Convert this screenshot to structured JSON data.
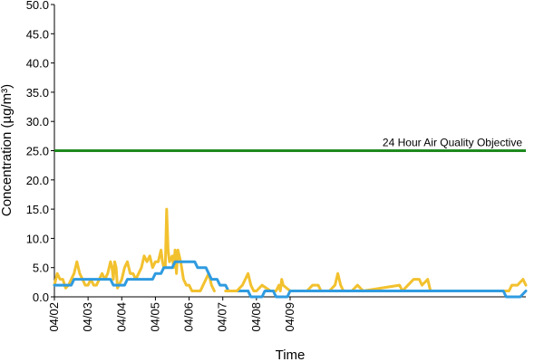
{
  "chart_data": {
    "type": "line",
    "title": "",
    "xlabel": "Time",
    "ylabel": "Concentration (µg/m³)",
    "ylim": [
      0,
      50
    ],
    "yticks": [
      "0.0",
      "5.0",
      "10.0",
      "15.0",
      "20.0",
      "25.0",
      "30.0",
      "35.0",
      "40.0",
      "45.0",
      "50.0"
    ],
    "xlim": [
      "04/02 00:00",
      "04/09 00:00"
    ],
    "xticks": [
      "04/02",
      "04/03",
      "04/04",
      "04/05",
      "04/06",
      "04/07",
      "04/08",
      "04/09"
    ],
    "grid": false,
    "legend": "none",
    "annotations": [
      {
        "text": "24 Hour Air Quality Objective",
        "y": 25
      }
    ],
    "series": [
      {
        "color": "#f2c12e",
        "points": [
          [
            "04/02 00:00",
            2
          ],
          [
            "04/02 02:00",
            4
          ],
          [
            "04/02 04:00",
            3
          ],
          [
            "04/02 06:00",
            3
          ],
          [
            "04/02 08:00",
            1.5
          ],
          [
            "04/02 10:00",
            2
          ],
          [
            "04/02 12:00",
            3
          ],
          [
            "04/02 14:00",
            4
          ],
          [
            "04/02 16:00",
            6
          ],
          [
            "04/02 18:00",
            4
          ],
          [
            "04/02 20:00",
            3
          ],
          [
            "04/02 22:00",
            2
          ],
          [
            "04/03 00:00",
            2
          ],
          [
            "04/03 02:00",
            3
          ],
          [
            "04/03 04:00",
            2
          ],
          [
            "04/03 06:00",
            2
          ],
          [
            "04/03 08:00",
            3
          ],
          [
            "04/03 10:00",
            4
          ],
          [
            "04/03 12:00",
            3
          ],
          [
            "04/03 14:00",
            4
          ],
          [
            "04/03 16:00",
            6
          ],
          [
            "04/03 17:00",
            5
          ],
          [
            "04/03 18:00",
            3
          ],
          [
            "04/03 19:00",
            6
          ],
          [
            "04/03 20:00",
            5
          ],
          [
            "04/03 21:00",
            1.5
          ],
          [
            "04/03 22:00",
            2
          ],
          [
            "04/04 00:00",
            3
          ],
          [
            "04/04 02:00",
            5
          ],
          [
            "04/04 04:00",
            6
          ],
          [
            "04/04 06:00",
            4
          ],
          [
            "04/04 08:00",
            4
          ],
          [
            "04/04 10:00",
            3
          ],
          [
            "04/04 12:00",
            4
          ],
          [
            "04/04 14:00",
            5
          ],
          [
            "04/04 16:00",
            7
          ],
          [
            "04/04 18:00",
            6
          ],
          [
            "04/04 20:00",
            7
          ],
          [
            "04/04 22:00",
            5
          ],
          [
            "04/05 00:00",
            6
          ],
          [
            "04/05 02:00",
            6
          ],
          [
            "04/05 04:00",
            8
          ],
          [
            "04/05 05:00",
            6
          ],
          [
            "04/05 06:00",
            5
          ],
          [
            "04/05 07:00",
            5
          ],
          [
            "04/05 08:00",
            15
          ],
          [
            "04/05 09:00",
            8
          ],
          [
            "04/05 10:00",
            6
          ],
          [
            "04/05 12:00",
            7
          ],
          [
            "04/05 13:00",
            5
          ],
          [
            "04/05 14:00",
            8
          ],
          [
            "04/05 15:00",
            4
          ],
          [
            "04/05 16:00",
            8
          ],
          [
            "04/05 18:00",
            6
          ],
          [
            "04/05 20:00",
            3
          ],
          [
            "04/05 22:00",
            2
          ],
          [
            "04/06 00:00",
            2
          ],
          [
            "04/06 02:00",
            1
          ],
          [
            "04/06 04:00",
            1
          ],
          [
            "04/06 06:00",
            1
          ],
          [
            "04/06 08:00",
            1
          ],
          [
            "04/06 10:00",
            2
          ],
          [
            "04/06 12:00",
            3
          ],
          [
            "04/06 14:00",
            4
          ],
          [
            "04/06 16:00",
            2
          ],
          [
            "04/06 18:00",
            1
          ]
        ]
      },
      {
        "color": "#2f9be0",
        "points": [
          [
            "04/02 00:00",
            2
          ],
          [
            "04/02 12:00",
            2
          ],
          [
            "04/02 14:00",
            3
          ],
          [
            "04/03 16:00",
            3
          ],
          [
            "04/03 18:00",
            2
          ],
          [
            "04/04 02:00",
            2
          ],
          [
            "04/04 04:00",
            3
          ],
          [
            "04/04 22:00",
            3
          ],
          [
            "04/05 00:00",
            4
          ],
          [
            "04/05 04:00",
            4
          ],
          [
            "04/05 06:00",
            5
          ],
          [
            "04/05 12:00",
            5
          ],
          [
            "04/05 14:00",
            6
          ],
          [
            "04/06 04:00",
            6
          ],
          [
            "04/06 06:00",
            5
          ],
          [
            "04/06 12:00",
            5
          ],
          [
            "04/06 14:00",
            4
          ],
          [
            "04/06 16:00",
            3
          ],
          [
            "04/06 20:00",
            3
          ],
          [
            "04/06 22:00",
            2
          ],
          [
            "04/07 02:00",
            2
          ],
          [
            "04/07 04:00",
            1
          ],
          [
            "04/07 18:00",
            1
          ]
        ]
      },
      {
        "color": "#f2c12e",
        "points": [
          [
            "04/07 02:00",
            1
          ],
          [
            "04/07 10:00",
            1
          ],
          [
            "04/07 14:00",
            2
          ],
          [
            "04/07 16:00",
            3
          ],
          [
            "04/07 18:00",
            4
          ],
          [
            "04/07 20:00",
            2
          ],
          [
            "04/07 22:00",
            1
          ],
          [
            "04/08 00:00",
            1
          ],
          [
            "04/08 04:00",
            2
          ],
          [
            "04/08 10:00",
            1
          ],
          [
            "04/08 14:00",
            1
          ],
          [
            "04/08 16:00",
            2
          ],
          [
            "04/08 17:00",
            1
          ],
          [
            "04/08 18:00",
            3
          ],
          [
            "04/08 19:00",
            2
          ],
          [
            "04/09 00:00",
            1
          ],
          [
            "04/09 06:00",
            1
          ],
          [
            "04/09 12:00",
            1
          ],
          [
            "04/09 16:00",
            2
          ],
          [
            "04/09 20:00",
            2
          ],
          [
            "04/09 22:00",
            1
          ],
          [
            "04/10 04:00",
            1
          ],
          [
            "04/10 08:00",
            2
          ],
          [
            "04/10 10:00",
            4
          ],
          [
            "04/10 12:00",
            2
          ],
          [
            "04/10 14:00",
            1
          ],
          [
            "04/10 20:00",
            1
          ],
          [
            "04/11 00:00",
            2
          ],
          [
            "04/11 04:00",
            1
          ],
          [
            "04/12 06:00",
            2
          ],
          [
            "04/12 08:00",
            1
          ],
          [
            "04/12 12:00",
            2
          ],
          [
            "04/12 16:00",
            3
          ],
          [
            "04/12 20:00",
            3
          ],
          [
            "04/12 22:00",
            2
          ],
          [
            "04/13 02:00",
            3
          ],
          [
            "04/13 04:00",
            1
          ],
          [
            "04/15 12:00",
            1
          ],
          [
            "04/15 14:00",
            2
          ],
          [
            "04/15 18:00",
            2
          ],
          [
            "04/15 22:00",
            3
          ],
          [
            "04/16 00:00",
            2
          ]
        ]
      },
      {
        "color": "#2f9be0",
        "points": [
          [
            "04/07 18:00",
            1
          ],
          [
            "04/07 20:00",
            0
          ],
          [
            "04/08 04:00",
            0
          ],
          [
            "04/08 06:00",
            1
          ],
          [
            "04/08 12:00",
            1
          ],
          [
            "04/08 14:00",
            0
          ],
          [
            "04/08 22:00",
            0
          ],
          [
            "04/09 00:00",
            1
          ],
          [
            "04/09 06:00",
            1
          ],
          [
            "04/09 12:00",
            1
          ],
          [
            "04/10 00:00",
            1
          ],
          [
            "04/11 00:00",
            1
          ],
          [
            "04/12 00:00",
            1
          ],
          [
            "04/13 00:00",
            1
          ],
          [
            "04/14 00:00",
            1
          ],
          [
            "04/15 00:00",
            1
          ],
          [
            "04/15 08:00",
            1
          ],
          [
            "04/15 10:00",
            0
          ],
          [
            "04/15 20:00",
            0
          ],
          [
            "04/16 00:00",
            1
          ]
        ]
      }
    ],
    "objective_line": {
      "y": 25,
      "color": "#1e8a1e"
    }
  }
}
